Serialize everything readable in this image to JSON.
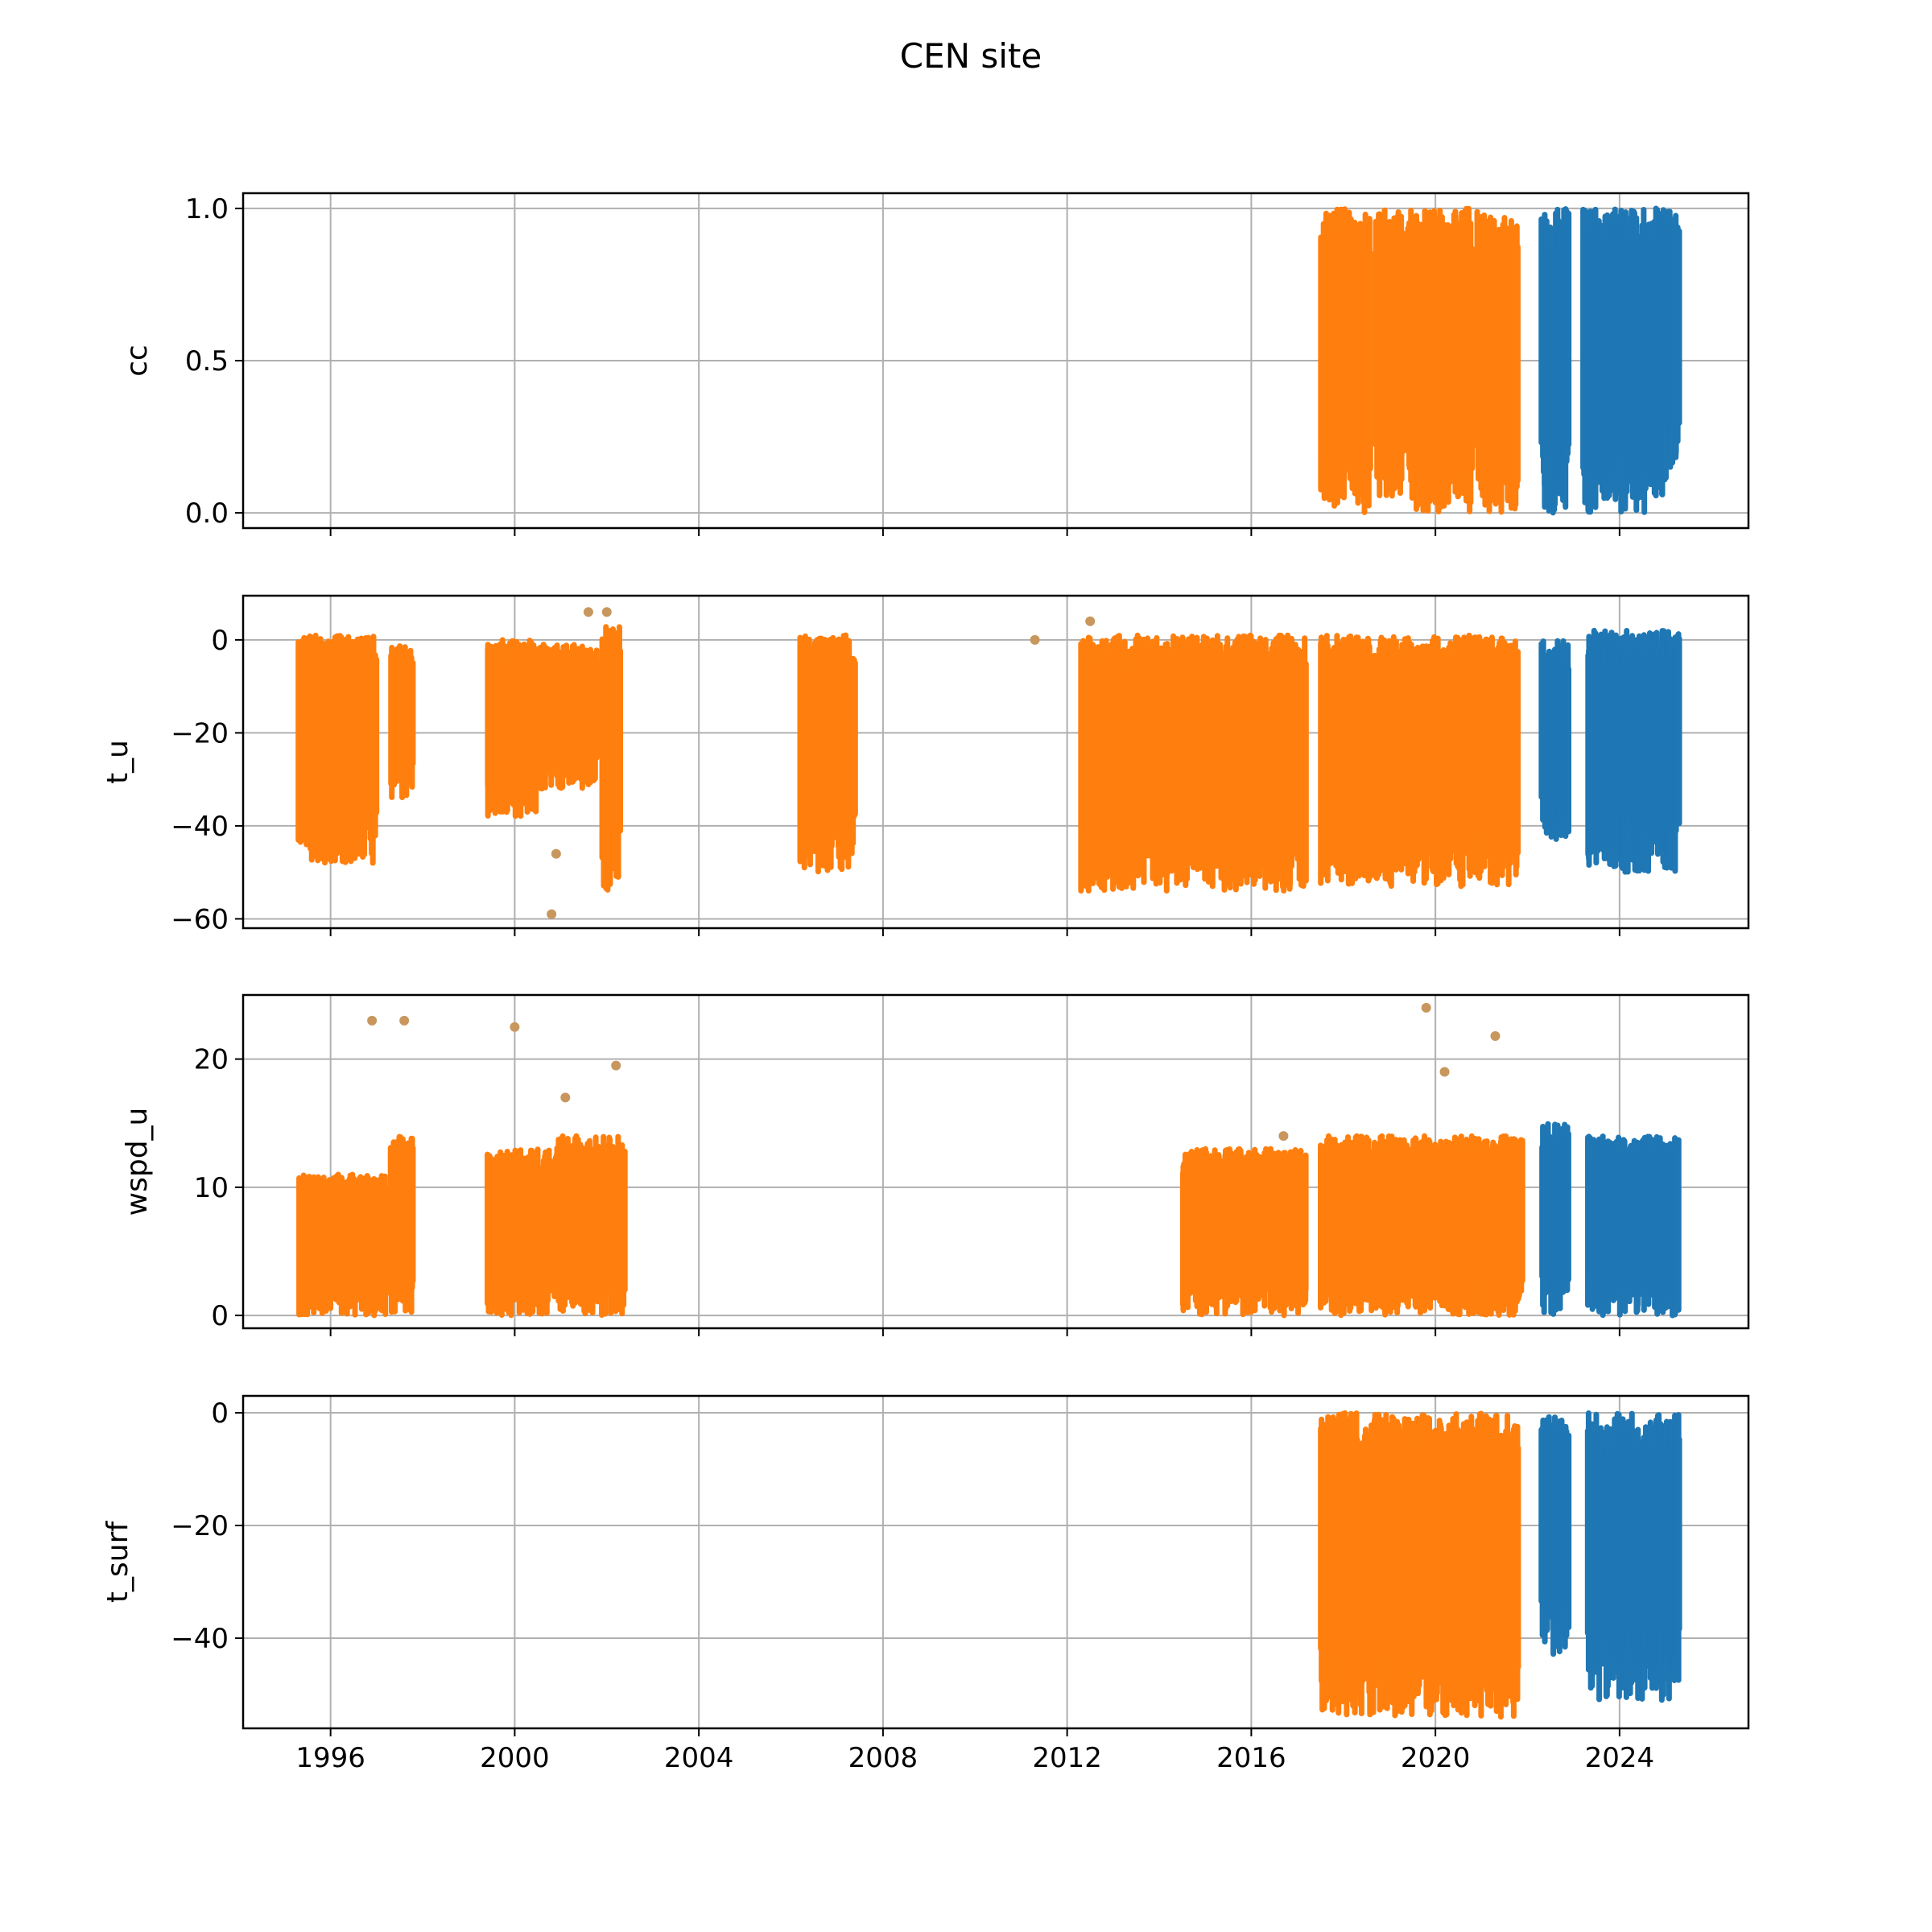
{
  "figure": {
    "title": "CEN site",
    "colors": {
      "orange": "#ff7f0e",
      "blue": "#1f77b4",
      "tan": "#c8975e"
    }
  },
  "chart_data": [
    {
      "type": "scatter",
      "ylabel": "cc",
      "xlim": [
        1994.1,
        2026.8
      ],
      "ylim": [
        -0.05,
        1.05
      ],
      "yticks": [
        "1.0",
        "0.5",
        "0.0"
      ],
      "ytick_values": [
        1.0,
        0.5,
        0.0
      ],
      "xticks": [],
      "grid": true,
      "series": [
        {
          "color": "orange",
          "segments": [
            [
              2017.5,
              2018.6,
              0.0,
              1.0
            ],
            [
              2018.7,
              2019.3,
              0.05,
              1.0
            ],
            [
              2019.4,
              2020.8,
              0.0,
              1.0
            ],
            [
              2020.9,
              2021.8,
              0.0,
              1.0
            ]
          ]
        },
        {
          "color": "blue",
          "segments": [
            [
              2022.3,
              2022.9,
              0.0,
              1.0
            ],
            [
              2023.2,
              2025.0,
              0.0,
              1.0
            ],
            [
              2025.0,
              2025.3,
              0.1,
              1.0
            ]
          ]
        }
      ]
    },
    {
      "type": "scatter",
      "ylabel": "t_u",
      "xlim": [
        1994.1,
        2026.8
      ],
      "ylim": [
        -62,
        9.5
      ],
      "yticks": [
        "0",
        "−20",
        "−40",
        "−60"
      ],
      "ytick_values": [
        0,
        -20,
        -40,
        -60
      ],
      "xticks": [],
      "grid": true,
      "series": [
        {
          "color": "orange",
          "segments": [
            [
              1995.3,
              1997.0,
              -48,
              1
            ],
            [
              1997.3,
              1997.8,
              -34,
              -1
            ],
            [
              1999.4,
              2000.5,
              -38,
              0
            ],
            [
              2000.5,
              2001.8,
              -32,
              -1
            ],
            [
              2001.9,
              2002.3,
              -54,
              3
            ],
            [
              2006.2,
              2007.4,
              -50,
              1
            ],
            [
              2012.3,
              2017.2,
              -54,
              1
            ],
            [
              2017.5,
              2021.8,
              -53,
              1
            ]
          ]
        },
        {
          "color": "blue",
          "segments": [
            [
              2022.3,
              2022.9,
              -43,
              0
            ],
            [
              2023.3,
              2025.3,
              -50,
              2
            ]
          ]
        },
        {
          "color": "tan",
          "points": [
            [
              2000.8,
              -59
            ],
            [
              2000.9,
              -46
            ],
            [
              2001.6,
              6
            ],
            [
              2002.0,
              6
            ],
            [
              2011.3,
              0
            ],
            [
              2012.5,
              4
            ]
          ]
        }
      ]
    },
    {
      "type": "scatter",
      "ylabel": "wspd_u",
      "xlim": [
        1994.1,
        2026.8
      ],
      "ylim": [
        -1,
        25
      ],
      "yticks": [
        "20",
        "10",
        "0"
      ],
      "ytick_values": [
        20,
        10,
        0
      ],
      "xticks": [],
      "grid": true,
      "series": [
        {
          "color": "orange",
          "segments": [
            [
              1995.3,
              1997.2,
              0,
              11
            ],
            [
              1997.3,
              1997.8,
              0,
              14
            ],
            [
              1999.4,
              2000.9,
              0,
              13
            ],
            [
              2000.9,
              2002.4,
              0,
              14
            ],
            [
              2014.5,
              2017.2,
              0,
              13
            ],
            [
              2017.5,
              2021.9,
              0,
              14
            ]
          ]
        },
        {
          "color": "blue",
          "segments": [
            [
              2022.3,
              2022.9,
              0,
              15
            ],
            [
              2023.3,
              2025.3,
              0,
              14
            ]
          ]
        },
        {
          "color": "tan",
          "points": [
            [
              1996.9,
              23
            ],
            [
              1997.6,
              23
            ],
            [
              2000.0,
              22.5
            ],
            [
              2001.1,
              17
            ],
            [
              2002.2,
              19.5
            ],
            [
              2019.8,
              24
            ],
            [
              2020.2,
              19
            ],
            [
              2021.3,
              21.8
            ],
            [
              2016.7,
              14
            ]
          ]
        }
      ]
    },
    {
      "type": "scatter",
      "ylabel": "t_surf",
      "xlim": [
        1994.1,
        2026.8
      ],
      "ylim": [
        -56,
        3
      ],
      "yticks": [
        "0",
        "−20",
        "−40"
      ],
      "ytick_values": [
        0,
        -20,
        -40
      ],
      "xticks": [
        "1996",
        "2000",
        "2004",
        "2008",
        "2012",
        "2016",
        "2020",
        "2024"
      ],
      "xtick_values": [
        1996,
        2000,
        2004,
        2008,
        2012,
        2016,
        2020,
        2024
      ],
      "grid": true,
      "series": [
        {
          "color": "orange",
          "segments": [
            [
              2017.5,
              2021.8,
              -54,
              0
            ]
          ]
        },
        {
          "color": "blue",
          "segments": [
            [
              2022.3,
              2022.9,
              -43,
              0
            ],
            [
              2023.3,
              2025.3,
              -51,
              0
            ]
          ]
        }
      ]
    }
  ]
}
